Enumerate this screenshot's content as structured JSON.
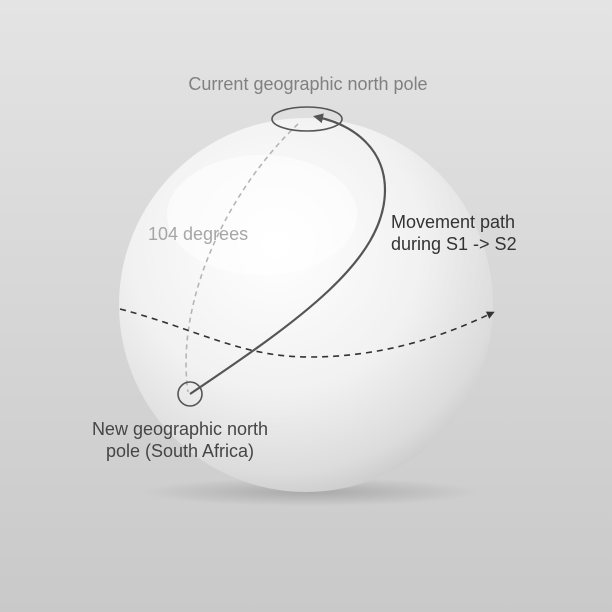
{
  "labels": {
    "current_pole": "Current geographic north pole",
    "degrees": "104 degrees",
    "path_line1": "Movement path",
    "path_line2": "during S1 -> S2",
    "new_pole_line1": "New geographic north",
    "new_pole_line2": "pole (South Africa)"
  },
  "colors": {
    "background_top": "#e4e4e4",
    "background_bottom": "#c9c9c9",
    "sphere_light": "#ffffff",
    "sphere_dark": "#cfcfcf",
    "path_stroke": "#555555",
    "meridian_stroke": "#b5b5b5",
    "equator_stroke": "#333333"
  }
}
